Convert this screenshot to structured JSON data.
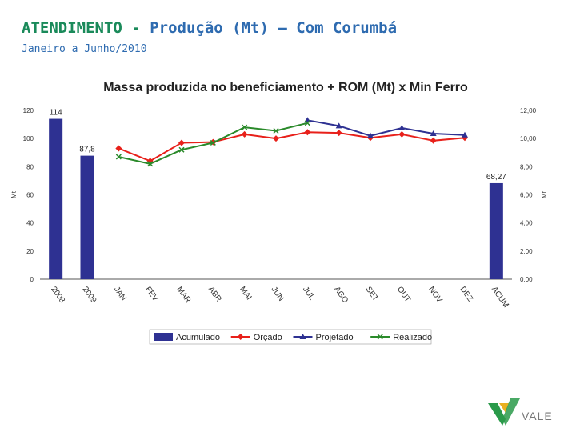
{
  "header": {
    "title_main": "ATENDIMENTO",
    "title_sep": "-",
    "title_sub": "Produção (Mt) – Com Corumbá",
    "subtitle": "Janeiro a Junho/2010"
  },
  "logo": {
    "text": "VALE",
    "colors": {
      "green": "#2a9a4a",
      "yellow": "#e8b020"
    }
  },
  "chart_data": {
    "type": "bar+line",
    "title": "Massa produzida no beneficiamento + ROM (Mt) x Min Ferro",
    "categories": [
      "2008",
      "2009",
      "JAN",
      "FEV",
      "MAR",
      "ABR",
      "MAI",
      "JUN",
      "JUL",
      "AGO",
      "SET",
      "OUT",
      "NOV",
      "DEZ",
      "ACUM"
    ],
    "left_axis": {
      "label": "Mt",
      "ylim": [
        0,
        120
      ],
      "ticks": [
        "0",
        "20",
        "40",
        "60",
        "80",
        "100",
        "120"
      ]
    },
    "right_axis": {
      "label": "Mt",
      "ylim": [
        0,
        12
      ],
      "ticks": [
        "0,00",
        "2,00",
        "4,00",
        "6,00",
        "8,00",
        "10,00",
        "12,00"
      ]
    },
    "series": [
      {
        "name": "Acumulado",
        "kind": "bar",
        "axis": "left",
        "color": "#2e3192",
        "values": [
          114,
          87.8,
          null,
          null,
          null,
          null,
          null,
          null,
          null,
          null,
          null,
          null,
          null,
          null,
          68.27
        ],
        "labels": [
          "114",
          "87,8",
          null,
          null,
          null,
          null,
          null,
          null,
          null,
          null,
          null,
          null,
          null,
          null,
          "68,27"
        ]
      },
      {
        "name": "Orçado",
        "kind": "line",
        "axis": "right",
        "color": "#e8201a",
        "marker": "diamond",
        "values": [
          null,
          null,
          9.3,
          8.4,
          9.7,
          9.75,
          10.3,
          10.0,
          10.45,
          10.4,
          10.05,
          10.3,
          9.85,
          10.05,
          null
        ]
      },
      {
        "name": "Projetado",
        "kind": "line",
        "axis": "right",
        "color": "#2e3192",
        "marker": "triangle",
        "values": [
          null,
          null,
          null,
          null,
          null,
          null,
          null,
          null,
          11.3,
          10.9,
          10.2,
          10.75,
          10.35,
          10.25,
          null
        ]
      },
      {
        "name": "Realizado",
        "kind": "line",
        "axis": "right",
        "color": "#2a8a2a",
        "marker": "x",
        "values": [
          null,
          null,
          8.7,
          8.2,
          9.2,
          9.7,
          10.8,
          10.55,
          11.1,
          null,
          null,
          null,
          null,
          null,
          null
        ]
      }
    ],
    "legend_position": "bottom"
  }
}
